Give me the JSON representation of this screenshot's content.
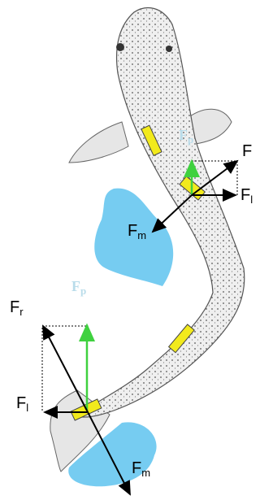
{
  "labels": [
    {
      "text": "F"
    },
    {
      "text": "F",
      "sub": "l"
    },
    {
      "text": "F",
      "sub": "m"
    },
    {
      "text": "F",
      "sub": "p"
    },
    {
      "text": "F",
      "sub": "p"
    },
    {
      "text": "F",
      "sub": "r"
    },
    {
      "text": "F",
      "sub": "l"
    },
    {
      "text": "F",
      "sub": "m"
    }
  ]
}
